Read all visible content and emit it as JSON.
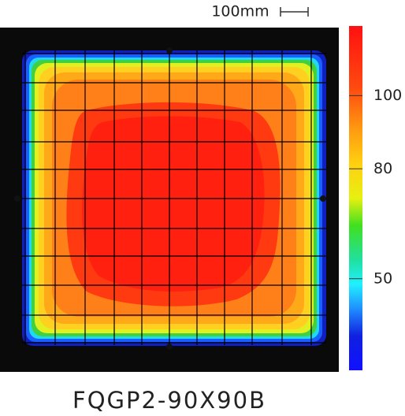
{
  "scale_label": "100mm",
  "caption": "FQGP2-90X90B",
  "colorbar": {
    "lim": [
      25,
      119
    ],
    "ticks": [
      100,
      80,
      50
    ]
  }
}
